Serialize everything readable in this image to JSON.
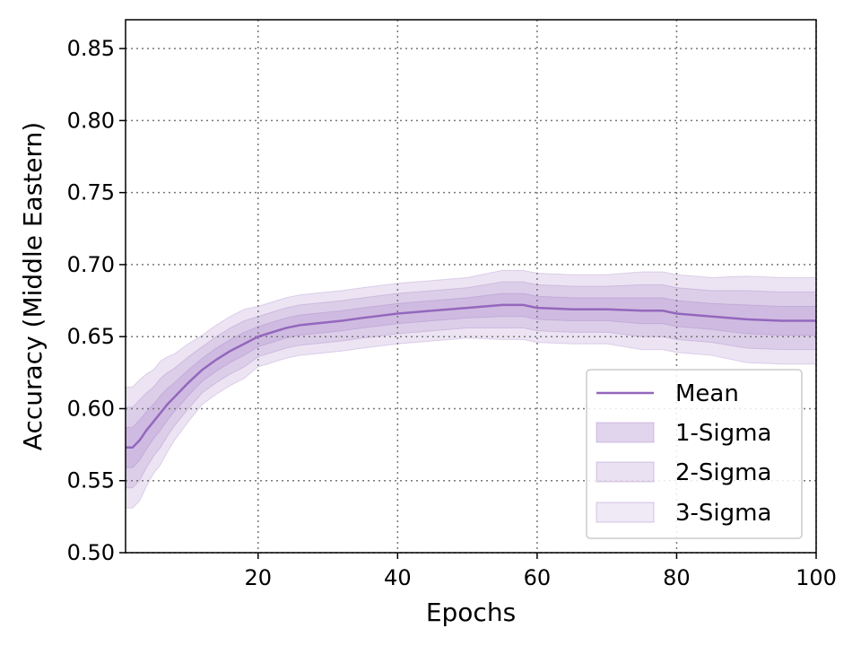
{
  "chart_data": {
    "type": "line",
    "xlabel": "Epochs",
    "ylabel": "Accuracy (Middle Eastern)",
    "xlim": [
      1,
      100
    ],
    "ylim": [
      0.5,
      0.87
    ],
    "xticks": [
      20,
      40,
      60,
      80,
      100
    ],
    "yticks": [
      0.5,
      0.55,
      0.6,
      0.65,
      0.7,
      0.75,
      0.8,
      0.85
    ],
    "grid": true,
    "grid_style": "dotted",
    "legend_position": "lower-right",
    "legend": [
      "Mean",
      "1-Sigma",
      "2-Sigma",
      "3-Sigma"
    ],
    "colors": {
      "line": "#9467bd",
      "band": "#9467bd"
    },
    "series": [
      {
        "name": "Mean",
        "x": [
          1,
          2,
          3,
          4,
          5,
          6,
          7,
          8,
          10,
          12,
          14,
          16,
          18,
          20,
          22,
          24,
          26,
          28,
          30,
          32,
          35,
          40,
          45,
          50,
          55,
          58,
          60,
          65,
          70,
          75,
          78,
          80,
          85,
          90,
          95,
          100
        ],
        "y": [
          0.573,
          0.573,
          0.578,
          0.585,
          0.591,
          0.597,
          0.603,
          0.608,
          0.618,
          0.627,
          0.634,
          0.64,
          0.645,
          0.65,
          0.653,
          0.656,
          0.658,
          0.659,
          0.66,
          0.661,
          0.663,
          0.666,
          0.668,
          0.67,
          0.672,
          0.672,
          0.67,
          0.669,
          0.669,
          0.668,
          0.668,
          0.666,
          0.664,
          0.662,
          0.661,
          0.661
        ],
        "sigma": [
          0.014,
          0.014,
          0.014,
          0.013,
          0.012,
          0.012,
          0.011,
          0.01,
          0.009,
          0.008,
          0.008,
          0.008,
          0.008,
          0.007,
          0.007,
          0.007,
          0.007,
          0.007,
          0.007,
          0.007,
          0.007,
          0.007,
          0.007,
          0.007,
          0.008,
          0.008,
          0.008,
          0.008,
          0.008,
          0.009,
          0.009,
          0.009,
          0.009,
          0.01,
          0.01,
          0.01
        ]
      }
    ]
  }
}
